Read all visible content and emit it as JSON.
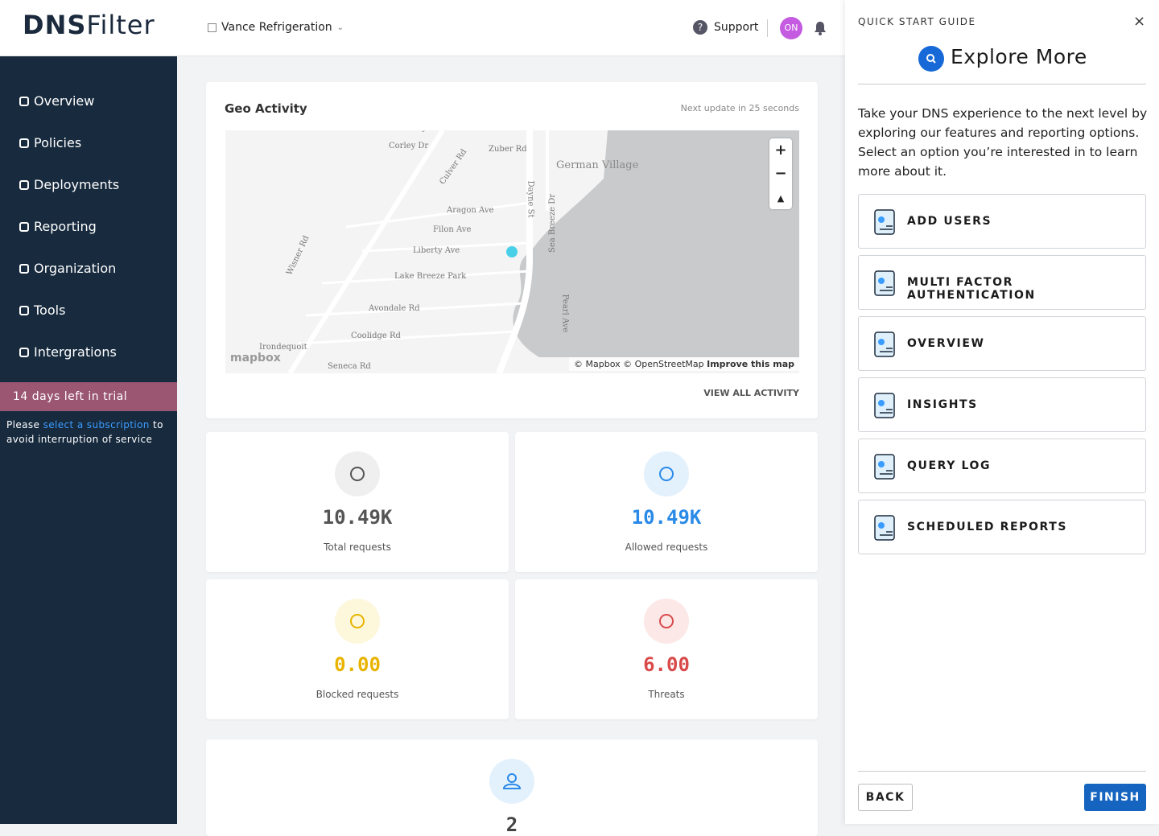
{
  "header": {
    "logo": {
      "part1": "DNS",
      "part2": "Filter"
    },
    "organization": "Vance Refrigeration",
    "support": "Support",
    "avatar": "ON"
  },
  "sidebar": {
    "nav": [
      "Overview",
      "Policies",
      "Deployments",
      "Reporting",
      "Organization",
      "Tools",
      "Intergrations"
    ],
    "trial": "14 days left in trial",
    "notice": {
      "before": "Please",
      "link": "select a subscription",
      "after": "to avoid interruption of service"
    }
  },
  "geo": {
    "title": "Geo Activity",
    "update": "Next update in 25 seconds",
    "map_labels": [
      "Dewberry Dr",
      "Corley Dr",
      "Zuber Rd",
      "Culver Rd",
      "German Village",
      "Aragon Ave",
      "Filon Ave",
      "Liberty Ave",
      "Dayne St",
      "Sea Breeze Dr",
      "Wisner Rd",
      "Lake Breeze Park",
      "Avondale Rd",
      "Coolidge Rd",
      "Irondequoit",
      "Seneca Rd",
      "Pearl Ave"
    ],
    "mapbox": "mapbox",
    "attribution": "© Mapbox © OpenStreetMap",
    "improve": "Improve this map",
    "link": "VIEW ALL ACTIVITY"
  },
  "stats": [
    {
      "value": "10.49K",
      "label": "Total requests"
    },
    {
      "value": "10.49K",
      "label": "Allowed requests"
    },
    {
      "value": "0.00",
      "label": "Blocked requests"
    },
    {
      "value": "6.00",
      "label": "Threats"
    }
  ],
  "partial_card": {
    "value": "2"
  },
  "guide": {
    "eyebrow": "QUICK START GUIDE",
    "title": "Explore More",
    "description": "Take your DNS experience to the next level by exploring our features and reporting options. Select an option you’re interested in to learn more about it.",
    "options": [
      "ADD USERS",
      "MULTI FACTOR AUTHENTICATION",
      "OVERVIEW",
      "INSIGHTS",
      "QUERY LOG",
      "SCHEDULED REPORTS"
    ],
    "back": "BACK",
    "finish": "FINISH"
  }
}
